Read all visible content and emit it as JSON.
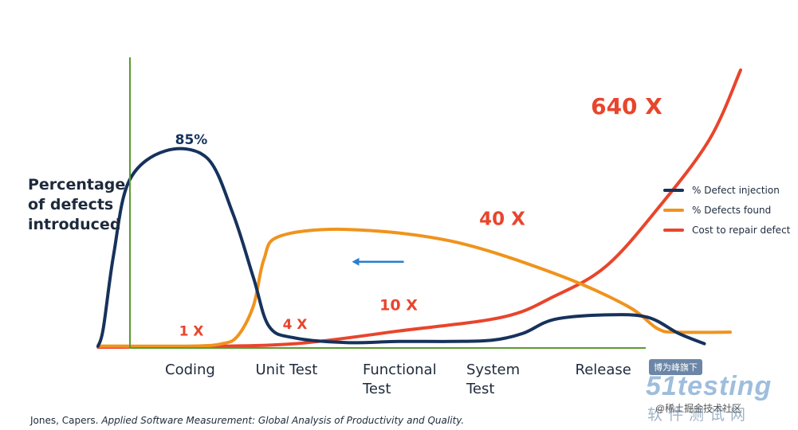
{
  "chart_data": {
    "type": "line",
    "ylabel": "Percentage of defects introduced",
    "categories": [
      "Coding",
      "Unit Test",
      "Functional Test",
      "System Test",
      "Release"
    ],
    "series": [
      {
        "name": "% Defect injection",
        "color": "#16325c",
        "points": [
          [
            -0.9,
            0.5
          ],
          [
            -0.85,
            8
          ],
          [
            -0.75,
            40
          ],
          [
            -0.6,
            72
          ],
          [
            -0.25,
            85
          ],
          [
            0.15,
            82
          ],
          [
            0.4,
            58
          ],
          [
            0.6,
            30
          ],
          [
            0.75,
            9
          ],
          [
            1.0,
            4
          ],
          [
            1.5,
            2
          ],
          [
            2.0,
            2.5
          ],
          [
            2.5,
            2.5
          ],
          [
            2.9,
            3
          ],
          [
            3.2,
            6
          ],
          [
            3.5,
            12
          ],
          [
            4.0,
            14
          ],
          [
            4.4,
            13
          ],
          [
            4.7,
            6
          ],
          [
            4.95,
            1.5
          ]
        ]
      },
      {
        "name": "% Defects found",
        "color": "#f0931c",
        "points": [
          [
            -0.9,
            0.5
          ],
          [
            0.0,
            0.5
          ],
          [
            0.3,
            1.5
          ],
          [
            0.45,
            5
          ],
          [
            0.6,
            18
          ],
          [
            0.7,
            38
          ],
          [
            0.85,
            48
          ],
          [
            1.5,
            51
          ],
          [
            2.5,
            46
          ],
          [
            3.5,
            32
          ],
          [
            4.2,
            18
          ],
          [
            4.5,
            8
          ],
          [
            4.7,
            6.5
          ],
          [
            5.2,
            6.5
          ]
        ]
      },
      {
        "name": "Cost to repair defect",
        "color": "#e8452c",
        "points": [
          [
            -0.9,
            0
          ],
          [
            0,
            0.3
          ],
          [
            1,
            1.5
          ],
          [
            2,
            7
          ],
          [
            3,
            13
          ],
          [
            3.5,
            22
          ],
          [
            4,
            35
          ],
          [
            4.5,
            60
          ],
          [
            5,
            90
          ],
          [
            5.3,
            120
          ]
        ]
      }
    ],
    "annotations": [
      {
        "text": "85%",
        "x": 0,
        "y": 88,
        "color": "#16325c"
      },
      {
        "text": "1 X",
        "x": 0,
        "y": 5,
        "color": "#e8452c"
      },
      {
        "text": "4 X",
        "x": 1,
        "y": 8,
        "color": "#e8452c"
      },
      {
        "text": "10 X",
        "x": 2,
        "y": 16,
        "color": "#e8452c"
      },
      {
        "text": "40 X",
        "x": 3,
        "y": 53,
        "color": "#e8452c"
      },
      {
        "text": "640 X",
        "x": 4.2,
        "y": 101,
        "color": "#e8452c"
      }
    ],
    "arrow": {
      "x_from": 2.05,
      "x_to": 1.55,
      "y": 37,
      "color": "#2a7fd0"
    },
    "axis_color": "#5a9a2f",
    "legend_position": "right",
    "grid": false
  },
  "source": {
    "author": "Jones, Capers.",
    "title": "Applied Software Measurement: Global Analysis of Productivity and Quality."
  },
  "watermark": {
    "badge": "博为峰旗下",
    "logo": "51testing",
    "subtitle": "软件测试网",
    "handle": "@稀土掘金技术社区"
  }
}
